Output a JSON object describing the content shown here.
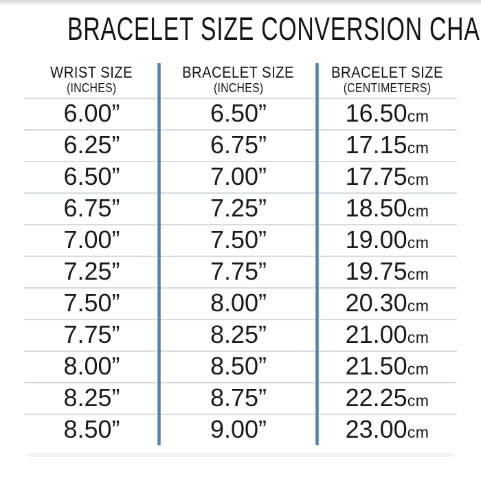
{
  "title": "BRACELET SIZE CONVERSION CHART",
  "columns": [
    {
      "label": "WRIST SIZE",
      "unit": "(INCHES)"
    },
    {
      "label": "BRACELET SIZE",
      "unit": "(INCHES)"
    },
    {
      "label": "BRACELET SIZE",
      "unit": "(CENTIMETERS)"
    }
  ],
  "rows": [
    {
      "wrist_in": "6.00”",
      "bracelet_in": "6.50”",
      "cm_value": "16.50",
      "cm_unit": "cm"
    },
    {
      "wrist_in": "6.25”",
      "bracelet_in": "6.75”",
      "cm_value": "17.15",
      "cm_unit": "cm"
    },
    {
      "wrist_in": "6.50”",
      "bracelet_in": "7.00”",
      "cm_value": "17.75",
      "cm_unit": "cm"
    },
    {
      "wrist_in": "6.75”",
      "bracelet_in": "7.25”",
      "cm_value": "18.50",
      "cm_unit": "cm"
    },
    {
      "wrist_in": "7.00”",
      "bracelet_in": "7.50”",
      "cm_value": "19.00",
      "cm_unit": "cm"
    },
    {
      "wrist_in": "7.25”",
      "bracelet_in": "7.75”",
      "cm_value": "19.75",
      "cm_unit": "cm"
    },
    {
      "wrist_in": "7.50”",
      "bracelet_in": "8.00”",
      "cm_value": "20.30",
      "cm_unit": "cm"
    },
    {
      "wrist_in": "7.75”",
      "bracelet_in": "8.25”",
      "cm_value": "21.00",
      "cm_unit": "cm"
    },
    {
      "wrist_in": "8.00”",
      "bracelet_in": "8.50”",
      "cm_value": "21.50",
      "cm_unit": "cm"
    },
    {
      "wrist_in": "8.25”",
      "bracelet_in": "8.75”",
      "cm_value": "22.25",
      "cm_unit": "cm"
    },
    {
      "wrist_in": "8.50”",
      "bracelet_in": "9.00”",
      "cm_value": "23.00",
      "cm_unit": "cm"
    }
  ],
  "chart_data": {
    "type": "table",
    "title": "BRACELET SIZE CONVERSION CHART",
    "columns": [
      "WRIST SIZE (INCHES)",
      "BRACELET SIZE (INCHES)",
      "BRACELET SIZE (CENTIMETERS)"
    ],
    "rows": [
      [
        6.0,
        6.5,
        16.5
      ],
      [
        6.25,
        6.75,
        17.15
      ],
      [
        6.5,
        7.0,
        17.75
      ],
      [
        6.75,
        7.25,
        18.5
      ],
      [
        7.0,
        7.5,
        19.0
      ],
      [
        7.25,
        7.75,
        19.75
      ],
      [
        7.5,
        8.0,
        20.3
      ],
      [
        7.75,
        8.25,
        21.0
      ],
      [
        8.0,
        8.5,
        21.5
      ],
      [
        8.25,
        8.75,
        22.25
      ],
      [
        8.5,
        9.0,
        23.0
      ]
    ]
  },
  "colors": {
    "divider_blue": "#4E7FAA",
    "row_line": "#D5DCE1",
    "text": "#1A1A1A"
  }
}
